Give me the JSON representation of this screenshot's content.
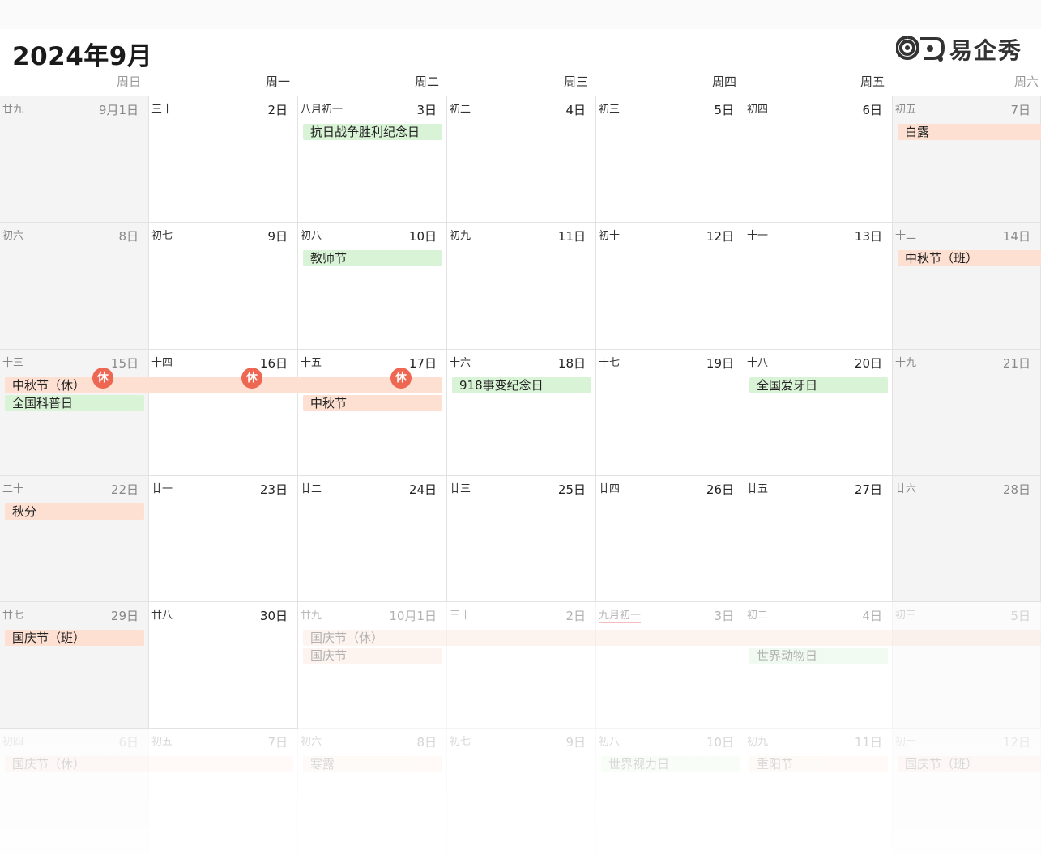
{
  "header": {
    "title": "2024年9月",
    "logo_text": "易企秀"
  },
  "weekdays": [
    "周日",
    "周一",
    "周二",
    "周三",
    "周四",
    "周五",
    "周六"
  ],
  "colors": {
    "holiday_green": "#d9f3d6",
    "holiday_orange": "#fde0d2",
    "rest_badge": "#ee6752",
    "lunar_newmonth_underline": "#e0474c"
  },
  "rest_badge_label": "休",
  "weeks": [
    [
      {
        "lunar": "廿九",
        "day": "9月1日"
      },
      {
        "lunar": "三十",
        "day": "2日"
      },
      {
        "lunar": "八月初一",
        "day": "3日",
        "new_month": true
      },
      {
        "lunar": "初二",
        "day": "4日"
      },
      {
        "lunar": "初三",
        "day": "5日"
      },
      {
        "lunar": "初四",
        "day": "6日"
      },
      {
        "lunar": "初五",
        "day": "7日"
      }
    ],
    [
      {
        "lunar": "初六",
        "day": "8日"
      },
      {
        "lunar": "初七",
        "day": "9日"
      },
      {
        "lunar": "初八",
        "day": "10日"
      },
      {
        "lunar": "初九",
        "day": "11日"
      },
      {
        "lunar": "初十",
        "day": "12日"
      },
      {
        "lunar": "十一",
        "day": "13日"
      },
      {
        "lunar": "十二",
        "day": "14日"
      }
    ],
    [
      {
        "lunar": "十三",
        "day": "15日"
      },
      {
        "lunar": "十四",
        "day": "16日"
      },
      {
        "lunar": "十五",
        "day": "17日"
      },
      {
        "lunar": "十六",
        "day": "18日"
      },
      {
        "lunar": "十七",
        "day": "19日"
      },
      {
        "lunar": "十八",
        "day": "20日"
      },
      {
        "lunar": "十九",
        "day": "21日"
      }
    ],
    [
      {
        "lunar": "二十",
        "day": "22日"
      },
      {
        "lunar": "廿一",
        "day": "23日"
      },
      {
        "lunar": "廿二",
        "day": "24日"
      },
      {
        "lunar": "廿三",
        "day": "25日"
      },
      {
        "lunar": "廿四",
        "day": "26日"
      },
      {
        "lunar": "廿五",
        "day": "27日"
      },
      {
        "lunar": "廿六",
        "day": "28日"
      }
    ],
    [
      {
        "lunar": "廿七",
        "day": "29日"
      },
      {
        "lunar": "廿八",
        "day": "30日"
      },
      {
        "lunar": "廿九",
        "day": "10月1日",
        "other_month": true
      },
      {
        "lunar": "三十",
        "day": "2日",
        "other_month": true
      },
      {
        "lunar": "九月初一",
        "day": "3日",
        "other_month": true,
        "new_month": true
      },
      {
        "lunar": "初二",
        "day": "4日",
        "other_month": true
      },
      {
        "lunar": "初三",
        "day": "5日",
        "other_month": true
      }
    ],
    [
      {
        "lunar": "初四",
        "day": "6日",
        "other_month": true
      },
      {
        "lunar": "初五",
        "day": "7日",
        "other_month": true
      },
      {
        "lunar": "初六",
        "day": "8日",
        "other_month": true
      },
      {
        "lunar": "初七",
        "day": "9日",
        "other_month": true
      },
      {
        "lunar": "初八",
        "day": "10日",
        "other_month": true
      },
      {
        "lunar": "初九",
        "day": "11日",
        "other_month": true
      },
      {
        "lunar": "初十",
        "day": "12日",
        "other_month": true
      }
    ]
  ],
  "events": [
    {
      "label": "抗日战争胜利纪念日",
      "color": "green",
      "week": 0,
      "start": 2,
      "span": 1,
      "slot": 0
    },
    {
      "label": "白露",
      "color": "orange",
      "week": 0,
      "start": 6,
      "span": 1,
      "slot": 0
    },
    {
      "label": "教师节",
      "color": "green",
      "week": 1,
      "start": 2,
      "span": 1,
      "slot": 0
    },
    {
      "label": "中秋节（班）",
      "color": "orange",
      "week": 1,
      "start": 6,
      "span": 1,
      "slot": 0
    },
    {
      "label": "中秋节（休）",
      "color": "orange",
      "week": 2,
      "start": 0,
      "span": 3,
      "slot": 0,
      "rest_days": [
        0,
        1,
        2
      ]
    },
    {
      "label": "全国科普日",
      "color": "green",
      "week": 2,
      "start": 0,
      "span": 1,
      "slot": 1
    },
    {
      "label": "中秋节",
      "color": "orange",
      "week": 2,
      "start": 2,
      "span": 1,
      "slot": 1
    },
    {
      "label": "918事变纪念日",
      "color": "green",
      "week": 2,
      "start": 3,
      "span": 1,
      "slot": 0
    },
    {
      "label": "全国爱牙日",
      "color": "green",
      "week": 2,
      "start": 5,
      "span": 1,
      "slot": 0
    },
    {
      "label": "秋分",
      "color": "orange",
      "week": 3,
      "start": 0,
      "span": 1,
      "slot": 0
    },
    {
      "label": "国庆节（班）",
      "color": "orange",
      "week": 4,
      "start": 0,
      "span": 1,
      "slot": 0
    },
    {
      "label": "国庆节（休）",
      "color": "orange",
      "week": 4,
      "start": 2,
      "span": 5,
      "slot": 0,
      "other_month": true
    },
    {
      "label": "国庆节",
      "color": "orange",
      "week": 4,
      "start": 2,
      "span": 1,
      "slot": 1,
      "other_month": true
    },
    {
      "label": "世界动物日",
      "color": "green",
      "week": 4,
      "start": 5,
      "span": 1,
      "slot": 1,
      "other_month": true
    },
    {
      "label": "国庆节（休）",
      "color": "orange",
      "week": 5,
      "start": 0,
      "span": 2,
      "slot": 0,
      "other_month": true
    },
    {
      "label": "寒露",
      "color": "orange",
      "week": 5,
      "start": 2,
      "span": 1,
      "slot": 0,
      "other_month": true
    },
    {
      "label": "世界视力日",
      "color": "green",
      "week": 5,
      "start": 4,
      "span": 1,
      "slot": 0,
      "other_month": true
    },
    {
      "label": "重阳节",
      "color": "orange",
      "week": 5,
      "start": 5,
      "span": 1,
      "slot": 0,
      "other_month": true
    },
    {
      "label": "国庆节（班）",
      "color": "orange",
      "week": 5,
      "start": 6,
      "span": 1,
      "slot": 0,
      "other_month": true
    }
  ]
}
